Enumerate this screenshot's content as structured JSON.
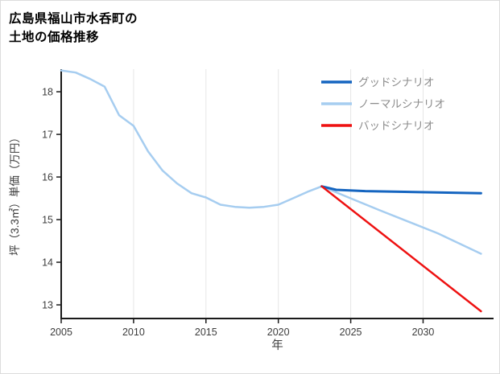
{
  "header": {
    "title_line1": "広島県福山市水呑町の",
    "title_line2": "土地の価格推移"
  },
  "chart_data": {
    "type": "line",
    "title": "広島県福山市水呑町の土地の価格推移",
    "xlabel": "年",
    "ylabel": "坪（3.3㎡）単価（万円）",
    "xlim": [
      2005,
      2034.2
    ],
    "ylim": [
      12.68,
      18.53
    ],
    "xticks": [
      2005,
      2010,
      2015,
      2020,
      2025,
      2030
    ],
    "yticks": [
      13,
      14,
      15,
      16,
      17,
      18
    ],
    "grid": "vertical",
    "legend_position": "top-right",
    "legend_order": [
      "グッドシナリオ",
      "ノーマルシナリオ",
      "バッドシナリオ"
    ],
    "colors": {
      "axis": "#1a1a1a",
      "grid": "#e6e6e6",
      "tick_text": "#3c3c3c",
      "axis_label_text": "#3c3c3c",
      "legend_text": "#8c8c8c"
    },
    "series": [
      {
        "name": "ノーマルシナリオ",
        "color": "#a6cdf0",
        "width": 2.5,
        "x": [
          2005,
          2006,
          2007,
          2008,
          2009,
          2010,
          2011,
          2012,
          2013,
          2014,
          2015,
          2016,
          2017,
          2018,
          2019,
          2020,
          2021,
          2022,
          2023,
          2025,
          2027,
          2029,
          2031,
          2034
        ],
        "y": [
          18.5,
          18.45,
          18.3,
          18.12,
          17.45,
          17.2,
          16.6,
          16.15,
          15.85,
          15.62,
          15.52,
          15.35,
          15.3,
          15.28,
          15.3,
          15.35,
          15.5,
          15.65,
          15.78,
          15.5,
          15.22,
          14.95,
          14.68,
          14.2
        ]
      },
      {
        "name": "グッドシナリオ",
        "color": "#1565c0",
        "width": 3,
        "x": [
          2023,
          2024,
          2026,
          2034
        ],
        "y": [
          15.78,
          15.7,
          15.67,
          15.62
        ]
      },
      {
        "name": "バッドシナリオ",
        "color": "#ee1111",
        "width": 2.5,
        "x": [
          2023,
          2034
        ],
        "y": [
          15.78,
          12.85
        ]
      }
    ]
  }
}
